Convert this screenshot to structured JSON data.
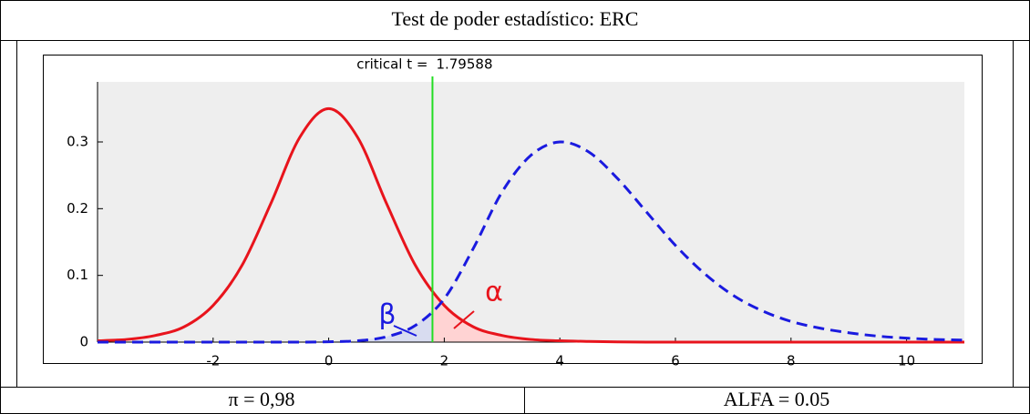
{
  "header": {
    "title": "Test de poder estadístico: ERC"
  },
  "chart_data": {
    "type": "line",
    "x": [
      -4,
      -3.5,
      -3,
      -2.5,
      -2,
      -1.5,
      -1,
      -0.5,
      0,
      0.5,
      1,
      1.5,
      2,
      2.5,
      3,
      3.5,
      4,
      4.5,
      5,
      5.5,
      6,
      6.5,
      7,
      7.5,
      8,
      8.5,
      9,
      9.5,
      10,
      10.5,
      11
    ],
    "series": [
      {
        "color": "#e8141c",
        "dash": false,
        "values": [
          0.002,
          0.004,
          0.01,
          0.023,
          0.055,
          0.115,
          0.208,
          0.307,
          0.35,
          0.307,
          0.208,
          0.115,
          0.055,
          0.023,
          0.01,
          0.004,
          0.002,
          0.001,
          0.0003,
          0,
          0,
          0,
          0,
          0,
          0,
          0,
          0,
          0,
          0,
          0,
          0
        ]
      },
      {
        "color": "#1a1adf",
        "dash": true,
        "values": [
          0,
          0,
          0,
          0,
          0,
          0,
          0,
          0,
          0.0005,
          0.002,
          0.008,
          0.025,
          0.065,
          0.14,
          0.225,
          0.28,
          0.3,
          0.285,
          0.245,
          0.195,
          0.145,
          0.103,
          0.07,
          0.047,
          0.031,
          0.021,
          0.014,
          0.009,
          0.006,
          0.004,
          0.003
        ]
      }
    ],
    "xlim": [
      -4,
      11
    ],
    "ylim": [
      0,
      0.39
    ],
    "xticks": [
      -2,
      0,
      2,
      4,
      6,
      8,
      10
    ],
    "yticks": [
      0,
      0.1,
      0.2,
      0.3
    ],
    "critical_label": "critical t =",
    "critical_t": 1.79588,
    "critical_color": "#22dd22",
    "annotations": [
      "β",
      "α"
    ]
  },
  "footer": {
    "cells": [
      "π = 0,98",
      "ALFA = 0.05"
    ]
  }
}
